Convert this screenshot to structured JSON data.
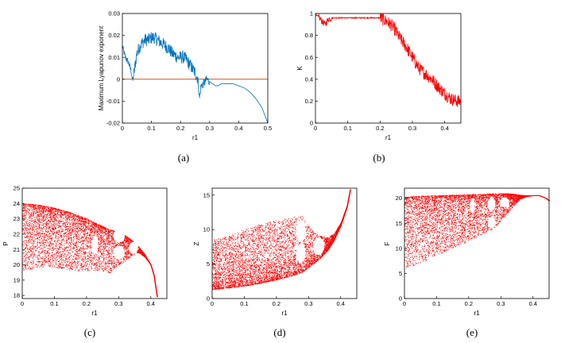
{
  "chart_data": [
    {
      "id": "a",
      "type": "line",
      "caption": "(a)",
      "xlabel": "r1",
      "ylabel": "Maximum Lyapunov exponent",
      "xlim": [
        0,
        0.5
      ],
      "ylim": [
        -0.02,
        0.03
      ],
      "xticks": [
        0,
        0.1,
        0.2,
        0.3,
        0.4,
        0.5
      ],
      "yticks": [
        -0.02,
        -0.01,
        0,
        0.01,
        0.02,
        0.03
      ],
      "xticklabels": [
        "0",
        "0.1",
        "0.2",
        "0.3",
        "0.4",
        "0.5"
      ],
      "yticklabels": [
        "-0.02",
        "-0.01",
        "0",
        "0.01",
        "0.02",
        "0.03"
      ],
      "line_color": "#0072bd",
      "reference_line": {
        "y": 0,
        "color": "#d95319"
      },
      "series": [
        {
          "name": "Maximum Lyapunov exponent",
          "x": [
            0,
            0.01,
            0.02,
            0.03,
            0.035,
            0.04,
            0.05,
            0.06,
            0.07,
            0.08,
            0.09,
            0.1,
            0.11,
            0.12,
            0.13,
            0.14,
            0.15,
            0.16,
            0.17,
            0.18,
            0.19,
            0.2,
            0.21,
            0.22,
            0.23,
            0.24,
            0.25,
            0.26,
            0.265,
            0.27,
            0.28,
            0.29,
            0.3,
            0.31,
            0.32,
            0.33,
            0.34,
            0.35,
            0.38,
            0.4,
            0.42,
            0.44,
            0.46,
            0.48,
            0.5
          ],
          "y": [
            0.015,
            0.01,
            0.008,
            0.004,
            -0.001,
            0.003,
            0.012,
            0.015,
            0.017,
            0.018,
            0.018,
            0.019,
            0.019,
            0.018,
            0.017,
            0.016,
            0.015,
            0.014,
            0.012,
            0.011,
            0.01,
            0.01,
            0.01,
            0.009,
            0.007,
            0.005,
            0.003,
            0.0,
            -0.009,
            -0.003,
            -0.002,
            0.0,
            -0.001,
            -0.002,
            -0.003,
            -0.003,
            -0.002,
            -0.002,
            -0.002,
            -0.003,
            -0.004,
            -0.006,
            -0.009,
            -0.013,
            -0.02
          ]
        }
      ]
    },
    {
      "id": "b",
      "type": "line",
      "caption": "(b)",
      "xlabel": "r1",
      "ylabel": "K",
      "xlim": [
        0,
        0.45
      ],
      "ylim": [
        0,
        1
      ],
      "xticks": [
        0,
        0.1,
        0.2,
        0.3,
        0.4
      ],
      "yticks": [
        0,
        0.2,
        0.4,
        0.6,
        0.8,
        1
      ],
      "xticklabels": [
        "0",
        "0.1",
        "0.2",
        "0.3",
        "0.4"
      ],
      "yticklabels": [
        "0",
        "0.2",
        "0.4",
        "0.6",
        "0.8",
        "1"
      ],
      "line_color": "#ff0000",
      "series": [
        {
          "name": "K",
          "x": [
            0,
            0.01,
            0.02,
            0.03,
            0.04,
            0.05,
            0.08,
            0.1,
            0.15,
            0.2,
            0.22,
            0.24,
            0.26,
            0.28,
            0.3,
            0.32,
            0.34,
            0.36,
            0.38,
            0.4,
            0.42,
            0.44,
            0.45
          ],
          "y": [
            0.99,
            0.97,
            0.93,
            0.9,
            0.95,
            0.96,
            0.96,
            0.96,
            0.96,
            0.96,
            0.93,
            0.88,
            0.78,
            0.7,
            0.6,
            0.5,
            0.45,
            0.4,
            0.33,
            0.27,
            0.22,
            0.2,
            0.2
          ]
        }
      ]
    },
    {
      "id": "c",
      "type": "scatter",
      "caption": "(c)",
      "xlabel": "r1",
      "ylabel": "P",
      "xlim": [
        0,
        0.45
      ],
      "ylim": [
        17.8,
        25
      ],
      "xticks": [
        0,
        0.1,
        0.2,
        0.3,
        0.4
      ],
      "yticks": [
        18,
        19,
        20,
        21,
        22,
        23,
        24,
        25
      ],
      "xticklabels": [
        "0",
        "0.1",
        "0.2",
        "0.3",
        "0.4"
      ],
      "yticklabels": [
        "18",
        "19",
        "20",
        "21",
        "22",
        "23",
        "24",
        "25"
      ],
      "marker_color": "#ff0000",
      "description": "Bifurcation diagram of P versus r1",
      "envelope": {
        "x": [
          0,
          0.05,
          0.1,
          0.15,
          0.2,
          0.25,
          0.27,
          0.3,
          0.32,
          0.34,
          0.36,
          0.38,
          0.4,
          0.41,
          0.42
        ],
        "upper": [
          24.0,
          23.9,
          23.7,
          23.4,
          23.0,
          22.5,
          22.3,
          22.1,
          21.9,
          21.6,
          21.2,
          20.7,
          20.0,
          19.3,
          17.9
        ],
        "lower": [
          19.6,
          19.8,
          19.8,
          19.6,
          19.6,
          19.6,
          19.4,
          20.0,
          20.2,
          20.6,
          20.8,
          20.5,
          20.0,
          19.3,
          17.9
        ]
      }
    },
    {
      "id": "d",
      "type": "scatter",
      "caption": "(d)",
      "xlabel": "r1",
      "ylabel": "Z",
      "xlim": [
        0,
        0.45
      ],
      "ylim": [
        0,
        16
      ],
      "xticks": [
        0,
        0.1,
        0.2,
        0.3,
        0.4
      ],
      "yticks": [
        0,
        5,
        10,
        15
      ],
      "xticklabels": [
        "0",
        "0.1",
        "0.2",
        "0.3",
        "0.4"
      ],
      "yticklabels": [
        "0",
        "5",
        "10",
        "15"
      ],
      "marker_color": "#ff0000",
      "description": "Bifurcation diagram of Z versus r1",
      "envelope": {
        "x": [
          0,
          0.05,
          0.1,
          0.15,
          0.2,
          0.25,
          0.28,
          0.3,
          0.32,
          0.34,
          0.36,
          0.38,
          0.4,
          0.42,
          0.43
        ],
        "upper": [
          8.5,
          9.0,
          10.0,
          10.8,
          11.3,
          11.8,
          12.0,
          10.5,
          9.5,
          9.0,
          8.8,
          9.5,
          11.0,
          13.5,
          15.8
        ],
        "lower": [
          1.3,
          1.5,
          1.8,
          2.2,
          2.7,
          3.3,
          3.8,
          4.5,
          5.2,
          6.0,
          7.0,
          8.5,
          10.5,
          13.3,
          15.8
        ]
      }
    },
    {
      "id": "e",
      "type": "scatter",
      "caption": "(e)",
      "xlabel": "r1",
      "ylabel": "F",
      "xlim": [
        0,
        0.45
      ],
      "ylim": [
        0,
        22
      ],
      "xticks": [
        0,
        0.1,
        0.2,
        0.3,
        0.4
      ],
      "yticks": [
        0,
        5,
        10,
        15,
        20
      ],
      "xticklabels": [
        "0",
        "0.1",
        "0.2",
        "0.3",
        "0.4"
      ],
      "yticklabels": [
        "0",
        "5",
        "10",
        "15",
        "20"
      ],
      "marker_color": "#ff0000",
      "description": "Bifurcation diagram of F versus r1",
      "envelope": {
        "x": [
          0,
          0.05,
          0.1,
          0.15,
          0.2,
          0.25,
          0.28,
          0.3,
          0.32,
          0.34,
          0.36,
          0.38,
          0.4,
          0.42,
          0.44,
          0.45
        ],
        "upper": [
          20.2,
          20.4,
          20.5,
          20.6,
          20.7,
          20.8,
          20.9,
          20.9,
          20.9,
          20.8,
          20.6,
          20.5,
          20.5,
          20.5,
          20.0,
          19.5
        ],
        "lower": [
          6.0,
          7.0,
          8.5,
          10.0,
          11.5,
          13.0,
          14.0,
          15.5,
          17.0,
          18.5,
          19.8,
          20.3,
          20.5,
          20.5,
          20.0,
          19.5
        ]
      }
    }
  ]
}
